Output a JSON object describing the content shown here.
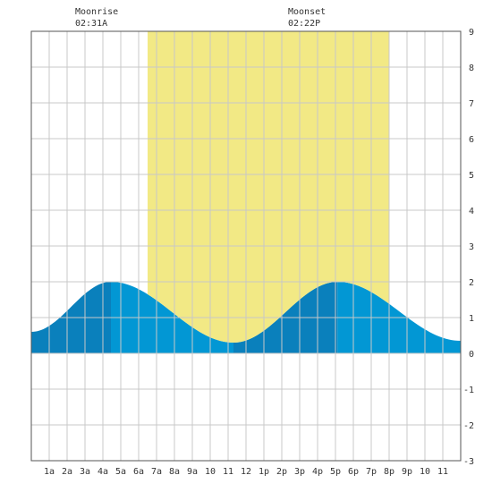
{
  "chart_data": {
    "type": "area",
    "x_tick_labels": [
      "1a",
      "2a",
      "3a",
      "4a",
      "5a",
      "6a",
      "7a",
      "8a",
      "9a",
      "10",
      "11",
      "12",
      "1p",
      "2p",
      "3p",
      "4p",
      "5p",
      "6p",
      "7p",
      "8p",
      "9p",
      "10",
      "11"
    ],
    "y_ticks": [
      9,
      8,
      7,
      6,
      5,
      4,
      3,
      2,
      1,
      0,
      -1,
      -2,
      -3
    ],
    "ylim": [
      -3,
      9
    ],
    "xlim_hours": [
      0,
      24
    ],
    "daylight": {
      "start": "6:30a",
      "end": "8:00p",
      "color": "#f2e985"
    },
    "tide_colors": {
      "rising": "#0a80bc",
      "falling": "#0297d4"
    },
    "series": [
      {
        "values": [
          {
            "x": "0:00",
            "y": 0.6
          },
          {
            "x": "4:27",
            "y": 2.0
          },
          {
            "x": "11:18",
            "y": 0.3
          },
          {
            "x": "17:07",
            "y": 2.0
          },
          {
            "x": "24:00",
            "y": 0.35
          }
        ]
      }
    ],
    "moonrise": {
      "label": "Moonrise",
      "time": "02:31A"
    },
    "moonset": {
      "label": "Moonset",
      "time": "02:22P"
    }
  }
}
